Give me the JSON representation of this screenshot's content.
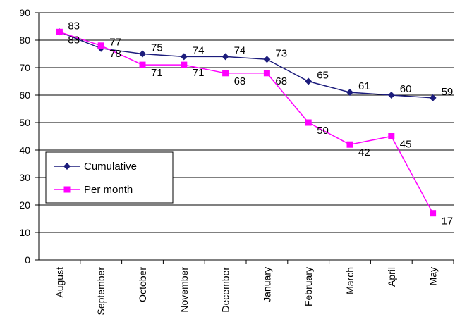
{
  "chart_data": {
    "type": "line",
    "categories": [
      "August",
      "September",
      "October",
      "November",
      "December",
      "January",
      "February",
      "March",
      "April",
      "May"
    ],
    "series": [
      {
        "name": "Cumulative",
        "color": "#1c1c7c",
        "marker": "diamond",
        "values": [
          83,
          77,
          75,
          74,
          74,
          73,
          65,
          61,
          60,
          59
        ]
      },
      {
        "name": "Per month",
        "color": "#ff00ff",
        "marker": "square",
        "values": [
          83,
          78,
          71,
          71,
          68,
          68,
          50,
          42,
          45,
          17
        ]
      }
    ],
    "ylim": [
      0,
      90
    ],
    "yticks": [
      0,
      10,
      20,
      30,
      40,
      50,
      60,
      70,
      80,
      90
    ],
    "grid": true
  }
}
